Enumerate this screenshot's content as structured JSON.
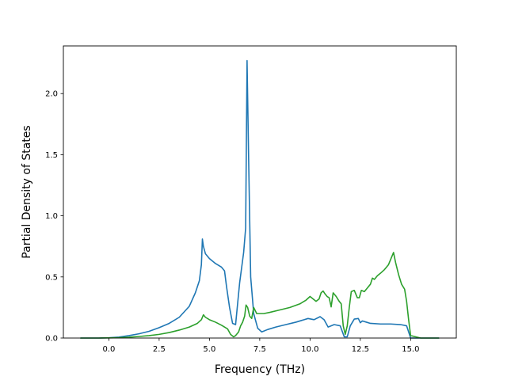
{
  "chart_data": {
    "type": "line",
    "title": "",
    "xlabel": "Frequency (THz)",
    "ylabel": "Partial Density of States",
    "xlim": [
      -2.26,
      17.27
    ],
    "ylim": [
      0.0,
      2.39
    ],
    "xticks": [
      0.0,
      2.5,
      5.0,
      7.5,
      10.0,
      12.5,
      15.0
    ],
    "xtick_labels": [
      "0.0",
      "2.5",
      "5.0",
      "7.5",
      "10.0",
      "12.5",
      "15.0"
    ],
    "yticks": [
      0.0,
      0.5,
      1.0,
      1.5,
      2.0
    ],
    "ytick_labels": [
      "0.0",
      "0.5",
      "1.0",
      "1.5",
      "2.0"
    ],
    "grid": false,
    "legend": "none",
    "series": [
      {
        "color": "#1f77b4",
        "x": [
          -1.4,
          -0.5,
          0.0,
          0.5,
          1.0,
          1.5,
          2.0,
          2.5,
          3.0,
          3.5,
          4.0,
          4.3,
          4.5,
          4.6,
          4.65,
          4.7,
          4.8,
          5.0,
          5.3,
          5.6,
          5.75,
          5.85,
          6.0,
          6.15,
          6.3,
          6.5,
          6.7,
          6.8,
          6.87,
          6.95,
          7.05,
          7.2,
          7.4,
          7.6,
          7.9,
          8.3,
          8.8,
          9.3,
          9.7,
          9.9,
          10.2,
          10.5,
          10.7,
          10.9,
          11.2,
          11.5,
          11.7,
          11.85,
          12.0,
          12.2,
          12.4,
          12.5,
          12.6,
          12.8,
          13.0,
          13.5,
          14.0,
          14.5,
          14.8,
          15.0,
          15.5,
          16.0,
          16.4
        ],
        "y": [
          0.0,
          0.0,
          0.002,
          0.008,
          0.02,
          0.035,
          0.055,
          0.085,
          0.12,
          0.17,
          0.26,
          0.37,
          0.47,
          0.6,
          0.81,
          0.75,
          0.69,
          0.65,
          0.61,
          0.58,
          0.55,
          0.42,
          0.25,
          0.12,
          0.11,
          0.45,
          0.7,
          0.9,
          2.27,
          1.45,
          0.5,
          0.2,
          0.08,
          0.05,
          0.07,
          0.09,
          0.11,
          0.13,
          0.15,
          0.16,
          0.15,
          0.175,
          0.15,
          0.09,
          0.11,
          0.1,
          0.01,
          0.01,
          0.1,
          0.155,
          0.16,
          0.125,
          0.14,
          0.13,
          0.12,
          0.115,
          0.115,
          0.11,
          0.1,
          0.0,
          0.0,
          0.0,
          0.0
        ]
      },
      {
        "color": "#2ca02c",
        "x": [
          -1.4,
          -0.5,
          0.0,
          0.5,
          1.0,
          1.5,
          2.0,
          2.5,
          3.0,
          3.5,
          4.0,
          4.4,
          4.6,
          4.7,
          4.8,
          5.0,
          5.3,
          5.6,
          5.9,
          6.05,
          6.2,
          6.3,
          6.45,
          6.55,
          6.65,
          6.75,
          6.82,
          6.9,
          7.0,
          7.1,
          7.2,
          7.35,
          7.5,
          7.7,
          8.0,
          8.5,
          9.0,
          9.5,
          9.8,
          10.0,
          10.3,
          10.45,
          10.55,
          10.65,
          10.75,
          10.85,
          10.95,
          11.05,
          11.15,
          11.3,
          11.45,
          11.55,
          11.65,
          11.75,
          11.85,
          11.95,
          12.05,
          12.2,
          12.35,
          12.45,
          12.55,
          12.7,
          12.85,
          13.0,
          13.1,
          13.2,
          13.35,
          13.5,
          13.7,
          13.9,
          14.05,
          14.15,
          14.25,
          14.4,
          14.55,
          14.7,
          14.8,
          14.9,
          15.0,
          15.5,
          16.0,
          16.4
        ],
        "y": [
          0.0,
          0.0,
          0.001,
          0.003,
          0.007,
          0.013,
          0.02,
          0.03,
          0.045,
          0.065,
          0.09,
          0.12,
          0.15,
          0.19,
          0.17,
          0.15,
          0.13,
          0.105,
          0.075,
          0.03,
          0.01,
          0.02,
          0.05,
          0.1,
          0.13,
          0.18,
          0.27,
          0.25,
          0.18,
          0.16,
          0.25,
          0.2,
          0.2,
          0.2,
          0.21,
          0.23,
          0.25,
          0.28,
          0.31,
          0.34,
          0.3,
          0.32,
          0.37,
          0.385,
          0.36,
          0.34,
          0.33,
          0.255,
          0.37,
          0.34,
          0.3,
          0.28,
          0.1,
          0.03,
          0.1,
          0.25,
          0.38,
          0.39,
          0.33,
          0.33,
          0.39,
          0.38,
          0.41,
          0.44,
          0.49,
          0.48,
          0.51,
          0.53,
          0.56,
          0.6,
          0.66,
          0.7,
          0.62,
          0.52,
          0.44,
          0.4,
          0.3,
          0.15,
          0.02,
          0.0,
          0.0,
          0.0
        ]
      }
    ]
  }
}
